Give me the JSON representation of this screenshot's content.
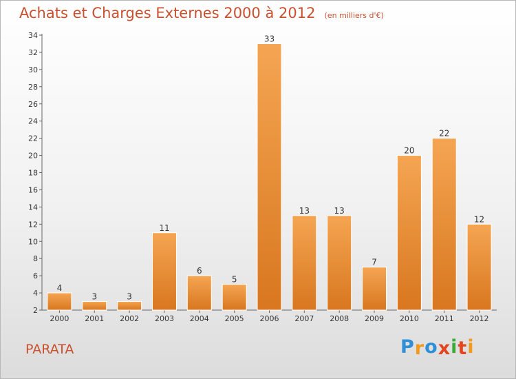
{
  "header": {
    "title": "Achats et Charges Externes 2000 à 2012",
    "subtitle": "(en milliers d'€)"
  },
  "footer": {
    "commune": "PARATA",
    "logo_text": "Proxiti"
  },
  "colors": {
    "title": "#c8502f",
    "bar_top": "#f5a552",
    "bar_bottom": "#d8771f",
    "axis": "#666666",
    "logo": [
      "#2e8fd6",
      "#f39a1d",
      "#2e8fd6",
      "#e2451f",
      "#3aa935",
      "#e2451f",
      "#f39a1d"
    ]
  },
  "chart_data": {
    "type": "bar",
    "categories": [
      "2000",
      "2001",
      "2002",
      "2003",
      "2004",
      "2005",
      "2006",
      "2007",
      "2008",
      "2009",
      "2010",
      "2011",
      "2012"
    ],
    "values": [
      4,
      3,
      3,
      11,
      6,
      5,
      33,
      13,
      13,
      7,
      20,
      22,
      12
    ],
    "ylim": [
      2,
      34
    ],
    "yticks": [
      2,
      4,
      6,
      8,
      10,
      12,
      14,
      16,
      18,
      20,
      22,
      24,
      26,
      28,
      30,
      32,
      34
    ],
    "grid": false,
    "data_labels": true
  }
}
